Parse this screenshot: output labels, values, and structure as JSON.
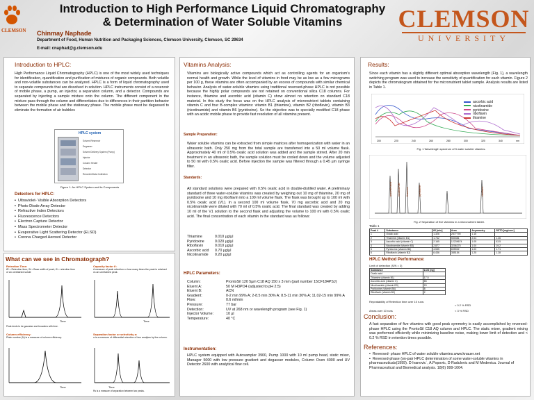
{
  "header": {
    "title1": "Introduction to High Performance Liquid Chromatography",
    "title2": "& Determination of Water Soluble Vitamins",
    "author": "Chinmay Naphade",
    "dept": "Department of Food, Human Nutrition and Packaging Sciences,  Clemson University, Clemson, SC  29634",
    "email": "E-mail:  cnaphad@g.clemson.edu",
    "left_logo": "CLEMSON",
    "clemson_big": "CLEMSON",
    "clemson_small": "UNIVERSITY"
  },
  "intro": {
    "heading": "Introduction to HPLC:",
    "text": "High Performance Liquid Chromatography (HPLC) is one of the most widely used techniques for identification, quantification and purification of mixtures of organic compounds. Both volatile and non-volatile substances can be analyzed. HPLC is a form of liquid chromatography used to separate compounds that are dissolved in solution. HPLC instruments consist of a reservoir of mobile phase, a pump, an injector, a separation column, and a detector. Compounds are separated by injecting a sample mixture onto the column. The different component in the mixture pass through the column and differentiates due to differences in their partition behavior between the mobile phase and the stationary phase. The mobile phase must be degassed to eliminate the formation of air bubbles",
    "fig_title": "HPLC system",
    "fig_caption": "Figure 1. An HPLC System and its Components",
    "fig_labels": [
      "Solvent Reservoir",
      "Degasser",
      "Solvent Delivery System (Pump)",
      "Injector",
      "Column Heater",
      "Detector",
      "Recorder/Data Collection"
    ],
    "detectors_title": "Detectors for HPLC:",
    "detectors": [
      "Ultraviolet- Visible Absorption Detectors",
      "Photo Diode Array Detector",
      "Refractive Index Detectors",
      "Fluorescence Detectors",
      "Electron Capture Detector",
      "Mass Spectrometer Detector",
      "Evaporative Light Scattering Detector (ELSD)",
      "Corona Charged Aerosol Detector"
    ]
  },
  "chromo": {
    "heading": "What can we see in Chromatograph?",
    "retention_title": "Retention Time:",
    "retention_text": "tR = Retention time; W = Base width of peak; t0 = retention time of an unretained solute",
    "capacity_title": "Capacity factor k':",
    "capacity_text": "A measure of peak retention or how many times the peak is retained vs an unretained peak.",
    "efficiency_title": "Column efficiency:",
    "efficiency_text": "Plate number (N) is a measure of column efficiency.",
    "separation_title": "Separation factor or selectivity α:",
    "separation_text": "α is a measure of differential retention of two analytes by the column.",
    "time_label": "Time",
    "note1": "Peak tends to be gaussian and broadens with time.",
    "note2": "Rs is a measure of separation between two peaks."
  },
  "vitamins": {
    "heading": "Vitamins Analysis:",
    "text": "Vitamins are biologically active compounds which act as controlling agents for an organism's normal health and growth. While the level of vitamins in food may be as low as a few micrograms per 100 g, these vitamins are often accompanied by an excess of compounds with similar chemical behavior. Analysis of water-soluble vitamins using traditional reversed-phase HPLC is not possible because the highly polar compounds are not retained on conventional silica C18 columns. For instance, thiamine and ascorbic acid (vitamin C) show almost no retention on standard C18 material. In this study the focus was on the HPLC analysis of micronutrient tablets containing vitamin C and four B-complex vitamins: vitamin B1 (thiamine), vitamin B2 (riboflavin), vitamin B3 (nicotinamide) and vitamin B6 (pyridoxine). So the objective was to specially modified C18 phase with an acidic mobile phase to provide fast resolution of all vitamins present.",
    "sample_prep_title": "Sample Preparation:",
    "sample_prep_text": "Water soluble vitamins can be extracted from simple matrices after homogenization with water in an ultrasonic bath. Only 250 mg from the total sample are transferred into a 50 ml volume flask. Approximately 40 ml of 0.5% oxalic acid solution was added and the sample stirred. After 20 min treatment in an ultrasonic bath, the sample solution must be cooled down and the volume adjusted to 50 ml with 0.5% oxalic acid. Before injection the sample was filtered through a 0.45 µm syringe filter.",
    "std_title": "Standards:",
    "std_text": "All standard solutions were prepared with 0.5% oxalic acid in double-distilled water. A preliminary standard of three water-soluble vitamins was created by weighing out 10 mg of thiamine, 20 mg of pyridoxine and 10 mg riboflavin into a 100 ml volume flask. The flask was brought up to 100 ml with 0.5% oxalic acid (V1). In a second 100 ml volume flask, 70 mg ascorbic acid and 20 mg nicotinamide were diluted with 70 ml of 0.5% oxalic acid. The final standard was created by adding 10 ml of the V1 solution to the second flask and adjusting the volume to 100 ml with 0.5% oxalic acid. The final concentration of each vitamin in the standard was as follows:",
    "std_values": [
      {
        "name": "Thiamine",
        "value": "0.010 µg/µl"
      },
      {
        "name": "Pyridoxine",
        "value": "0.020 µg/µl"
      },
      {
        "name": "Riboflavin",
        "value": "0.010 µg/µl"
      },
      {
        "name": "Ascorbic acid",
        "value": "0.70  µg/µl"
      },
      {
        "name": "Nicotinamide",
        "value": "0.20  µg/µl"
      }
    ],
    "params_title": "HPLC Parameters:",
    "params": [
      {
        "k": "Column:",
        "v": "ProntoSil 120 5µm C18 AQ 150 x 3 mm (part number 15CF184PSJ)"
      },
      {
        "k": "Eluent A:",
        "v": "50 M H3PO4 (adjusted to pH 2.5)"
      },
      {
        "k": "Eluent B:",
        "v": "ACN"
      },
      {
        "k": "Gradient:",
        "v": "0-2 min 99% A; 2-8.5 min 30% A; 8.5-11 min 30% A; 11.02-15 min 99% A"
      },
      {
        "k": "Flow:",
        "v": "0.6 ml/min"
      },
      {
        "k": "Pressure:",
        "v": "77 bar"
      },
      {
        "k": "Detection:",
        "v": "UV at 268 nm or wavelength program (see Fig. 1)"
      },
      {
        "k": "Injector Volume:",
        "v": "10 µl"
      },
      {
        "k": "Temperature:",
        "v": "40 °C"
      }
    ],
    "instr_title": "Instrumentation:",
    "instr_text": "HPLC system equipped with Autosampler 3900, Pump 1000 with 10 ml pump head, static mixer, Manager 5000 with low pressure gradient and degasser modules, Column Oven 4000 and UV Detector 2600 with analytical flow cell."
  },
  "results": {
    "heading": "Results:",
    "text": "Since each vitamin has a slightly different optimal absorption wavelength (Fig. 1), a wavelength switching program was used to increase the sensitivity of quantification for each vitamin. Figure 2 depicts the chromatogram obtained for the micronutrient tablet sample. Analysis results are listed in Table 1.",
    "fig1_caption": "Fig. 1 Wavelength spectrum of 5 water soluble vitamins.",
    "legend": [
      "ascorbic acid",
      "nicotinamide",
      "pyridoxine",
      "riboflavin",
      "thiamine"
    ],
    "legend_colors": [
      "#3355cc",
      "#33aa55",
      "#cc4488",
      "#aa66cc",
      "#cc3333"
    ],
    "fig1_ticks": [
      "200",
      "220",
      "240",
      "260",
      "280",
      "300",
      "320",
      "340",
      "nm"
    ],
    "fig2_caption": "Fig. 2  Separation of five vitamins in a micronutrient tablet.",
    "fig2_peaks": [
      "ascorbic acid",
      "nicotinamide",
      "thiamine",
      "pyridoxine",
      "riboflavin"
    ],
    "table_title": "Table 1",
    "table_headers": [
      "Peak #",
      "Substance",
      "tR [min]",
      "Area",
      "Asymmetry",
      "RSTD [mg/core]"
    ],
    "table_rows": [
      [
        "1",
        "Oxalic acid",
        "1.326",
        "2877790",
        "1.16",
        ""
      ],
      [
        "2",
        "Thiamine (vitamin B1)",
        "1.742",
        "550381",
        "2.04",
        "1.26"
      ],
      [
        "3",
        "Ascorbic acid (vitamin C)",
        "2.165",
        "12239674",
        "1.05",
        "63.5"
      ],
      [
        "4",
        "Nicotinamide (vitamin B3)",
        "2.877",
        "3206275",
        "1.00",
        "19.2"
      ],
      [
        "5",
        "Pyridoxine (vitamin B6)",
        "4.535",
        "695902",
        "1.00",
        "1.71"
      ],
      [
        "6",
        "Riboflavin (vitamin B2)",
        "6.436",
        "385154",
        "1.25",
        "1.28"
      ]
    ],
    "method_title": "HPLC Method Performance:",
    "lod_label": "Limit of detection (S/N = 3)",
    "lod_headers": [
      "Substance",
      "LOD [ng]"
    ],
    "lod_rows": [
      [
        "Oxalic acid",
        ""
      ],
      [
        "Thiamine (vitamin B1)",
        "17.5"
      ],
      [
        "Ascorbic acid (vitamin C)",
        "85"
      ],
      [
        "Nicotinamide (vitamin B3)",
        "20"
      ],
      [
        "Pyridoxine (vitamin B6)",
        "8"
      ],
      [
        "Riboflavin (vitamin B2)",
        "2"
      ]
    ],
    "repeat_label": "Repeatability of Retention time over 10 runs:",
    "repeat_value": "< 0.2 % RSD",
    "areas_label": "Areas over 10 runs",
    "areas_value": "< 3 % RSD"
  },
  "conclusion": {
    "heading": "Conclusion:",
    "text": "A fast separation of five vitamins with good peak symmetry is easily accomplished by reversed-phase HPLC using the ProntoSil C18 AQ column and HPLC. The static mixer, gradient mixing was performed efficiently while minimizing baseline noise, making lower limit of detection and < 0.2 % RSD in retention times possible."
  },
  "references": {
    "heading": "References:",
    "items": [
      "Reversed- phase HPLC of water soluble vitamins.www.knauer.net",
      "Reversed-phase (on-pair HPLC determination of some water-soluble vitamins in pharmaceuticals(1999). D Ivanovic´, A.Popovic, D Radulovic and M Medenica. Journal of Pharmaceutical and Biomedical analysis. 18(6) 999-1004."
    ]
  }
}
